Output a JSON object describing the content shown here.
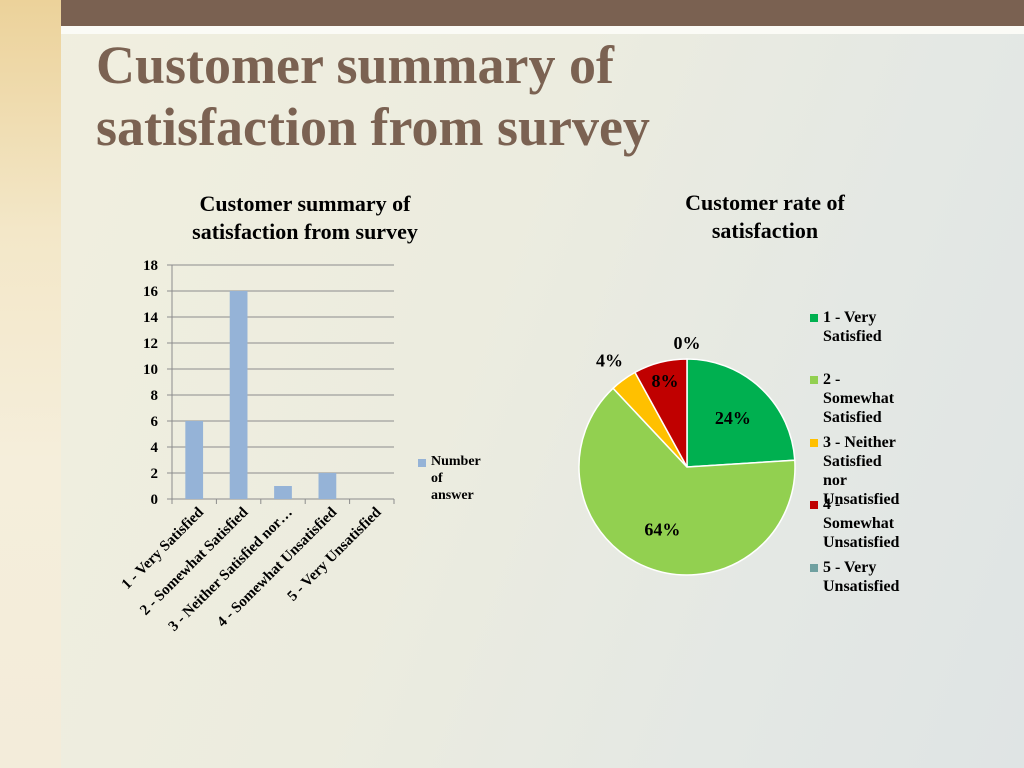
{
  "slide": {
    "title_line1": "Customer summary of",
    "title_line2": "satisfaction from survey"
  },
  "colors": {
    "header_bar": "#7a6151",
    "title_text": "#7b6252",
    "bar_fill": "#95b3d7"
  },
  "chart_data": [
    {
      "type": "bar",
      "title": "Customer summary of satisfaction from survey",
      "title_line1": "Customer summary of",
      "title_line2": "satisfaction from survey",
      "categories": [
        "1 - Very Satisfied",
        "2 - Somewhat Satisfied",
        "3 - Neither Satisfied nor…",
        "4 - Somewhat Unsatisfied",
        "5 - Very Unsatisfied"
      ],
      "series": [
        {
          "name": "Number of answer",
          "legend_line1": "Number of",
          "legend_line2": "answer",
          "values": [
            6,
            16,
            1,
            2,
            0
          ]
        }
      ],
      "yticks": [
        "0",
        "2",
        "4",
        "6",
        "8",
        "10",
        "12",
        "14",
        "16",
        "18"
      ],
      "ylim": [
        0,
        18
      ],
      "grid": true,
      "legend_position": "right"
    },
    {
      "type": "pie",
      "title": "Customer rate of satisfaction",
      "title_line1": "Customer rate of",
      "title_line2": "satisfaction",
      "slices": [
        {
          "label": "1 - Very Satisfied",
          "legend_line1": "1 - Very Satisfied",
          "legend_line2": "",
          "legend_line3": "",
          "value": 24,
          "data_label": "24%",
          "color": "#00b050"
        },
        {
          "label": "2 - Somewhat Satisfied",
          "legend_line1": "2 - Somewhat",
          "legend_line2": "Satisfied",
          "legend_line3": "",
          "value": 64,
          "data_label": "64%",
          "color": "#92d050"
        },
        {
          "label": "3 - Neither Satisfied nor Unsatisfied",
          "legend_line1": "3 - Neither",
          "legend_line2": "Satisfied nor",
          "legend_line3": "Unsatisfied",
          "value": 4,
          "data_label": "4%",
          "color": "#ffc000"
        },
        {
          "label": "4 - Somewhat Unsatisfied",
          "legend_line1": "4 - Somewhat",
          "legend_line2": "Unsatisfied",
          "legend_line3": "",
          "value": 8,
          "data_label": "8%",
          "color": "#c00000"
        },
        {
          "label": "5 - Very Unsatisfied",
          "legend_line1": "5 - Very",
          "legend_line2": "Unsatisfied",
          "legend_line3": "",
          "value": 0,
          "data_label": "0%",
          "color": "#6fa0a0"
        }
      ],
      "legend_position": "right"
    }
  ]
}
